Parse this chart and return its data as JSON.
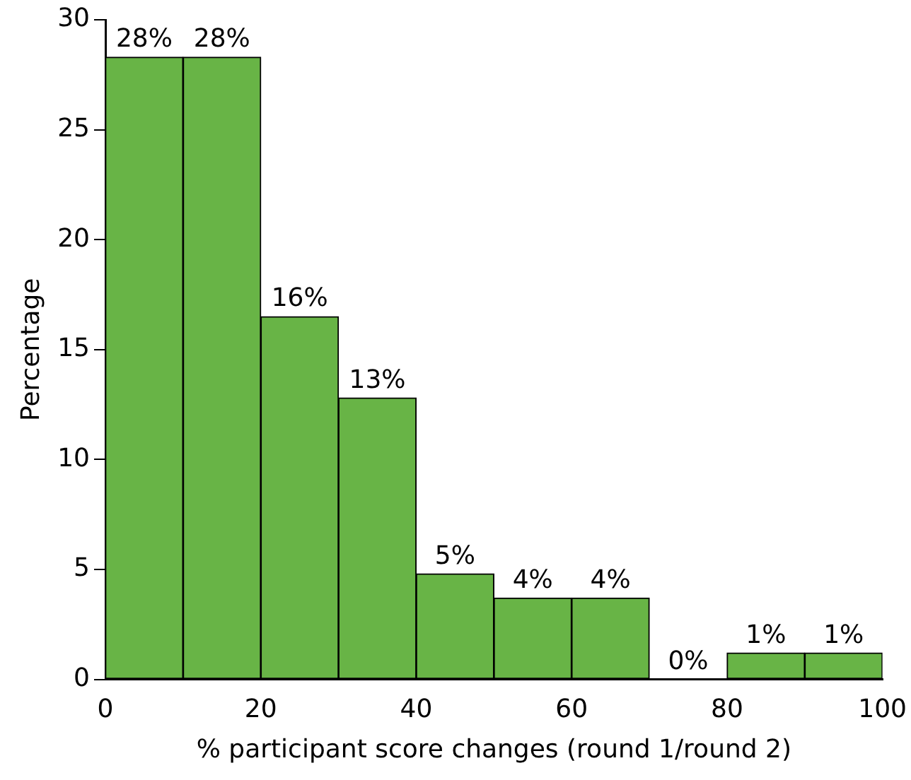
{
  "chart_data": {
    "type": "histogram",
    "xlabel": "% participant score changes (round 1/round 2)",
    "ylabel": "Percentage",
    "bins": [
      0,
      10,
      20,
      30,
      40,
      50,
      60,
      70,
      80,
      90,
      100
    ],
    "values": [
      28.3,
      28.3,
      16.5,
      12.8,
      4.8,
      3.7,
      3.7,
      0,
      1.2,
      1.2
    ],
    "value_labels": [
      "28%",
      "28%",
      "16%",
      "13%",
      "5%",
      "4%",
      "4%",
      "0%",
      "1%",
      "1%"
    ],
    "color": "#68b446",
    "xlim": [
      0,
      100
    ],
    "xticks": [
      0,
      20,
      40,
      60,
      80,
      100
    ],
    "ylim": [
      0,
      30
    ],
    "yticks": [
      0,
      5,
      10,
      15,
      20,
      25,
      30
    ],
    "grid": false,
    "legend": false
  }
}
